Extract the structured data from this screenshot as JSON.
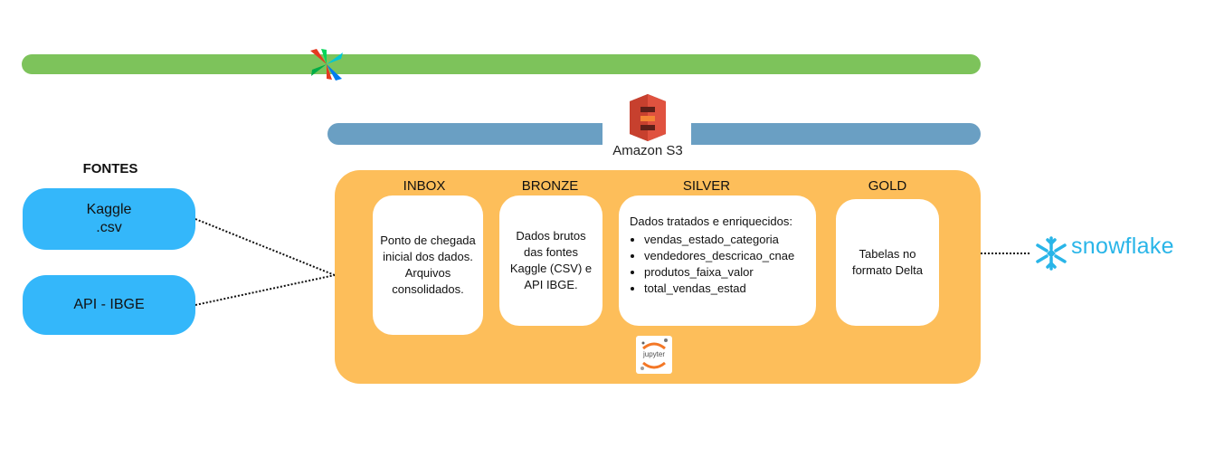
{
  "orchestrator": {
    "icon": "airflow-pinwheel-icon"
  },
  "storage": {
    "label": "Amazon S3",
    "icon": "amazon-s3-bucket-icon"
  },
  "sources": {
    "title": "FONTES",
    "items": [
      {
        "line1": "Kaggle",
        "line2": ".csv"
      },
      {
        "line1": "API - IBGE",
        "line2": ""
      }
    ]
  },
  "layers": {
    "inbox": {
      "title": "INBOX",
      "text": "Ponto de chegada inicial dos dados. Arquivos consolidados."
    },
    "bronze": {
      "title": "BRONZE",
      "text": "Dados brutos das fontes Kaggle (CSV) e API IBGE."
    },
    "silver": {
      "title": "SILVER",
      "text": "Dados tratados e enriquecidos:",
      "items": [
        "vendas_estado_categoria",
        "vendedores_descricao_cnae",
        "produtos_faixa_valor",
        "total_vendas_estad"
      ]
    },
    "gold": {
      "title": "GOLD",
      "text": "Tabelas no formato Delta"
    }
  },
  "processing": {
    "label": "jupyter",
    "icon": "jupyter-icon"
  },
  "destination": {
    "label": "snowflake",
    "icon": "snowflake-icon"
  },
  "colors": {
    "orchestration_bar": "#7dc35b",
    "storage_bar": "#6a9fc3",
    "source_pill": "#34b7fa",
    "lake_box": "#fdbe5a",
    "snowflake_brand": "#29b5e8",
    "s3_brand": "#e0523f"
  }
}
